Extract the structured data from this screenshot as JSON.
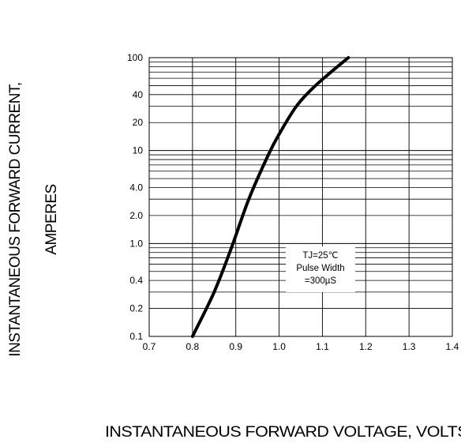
{
  "chart_data": {
    "type": "line",
    "title": "",
    "xlabel": "INSTANTANEOUS FORWARD VOLTAGE,  VOLTS",
    "ylabel": [
      "INSTANTANEOUS FORWARD CURRENT,",
      "AMPERES"
    ],
    "xlim": [
      0.7,
      1.4
    ],
    "ylim": [
      0.1,
      100
    ],
    "yscale": "log",
    "x_ticks": [
      "0.7",
      "0.8",
      "0.9",
      "1.0",
      "1.1",
      "1.2",
      "1.3",
      "1.4"
    ],
    "y_ticks": [
      {
        "value": 0.1,
        "label": "0.1"
      },
      {
        "value": 0.2,
        "label": "0.2"
      },
      {
        "value": 0.4,
        "label": "0.4"
      },
      {
        "value": 1,
        "label": "1.0"
      },
      {
        "value": 2,
        "label": "2.0"
      },
      {
        "value": 4,
        "label": "4.0"
      },
      {
        "value": 10,
        "label": "10"
      },
      {
        "value": 20,
        "label": "20"
      },
      {
        "value": 40,
        "label": "40"
      },
      {
        "value": 100,
        "label": "100"
      }
    ],
    "grid": true,
    "annotation": [
      "TJ=25℃",
      "Pulse Width",
      "=300µS"
    ],
    "series": [
      {
        "x": [
          0.8,
          0.85,
          0.89,
          0.93,
          0.975,
          1.0,
          1.04,
          1.08,
          1.12,
          1.16
        ],
        "y": [
          0.1,
          0.3,
          0.9,
          3.0,
          9.0,
          15,
          30,
          48,
          70,
          100
        ]
      }
    ]
  }
}
